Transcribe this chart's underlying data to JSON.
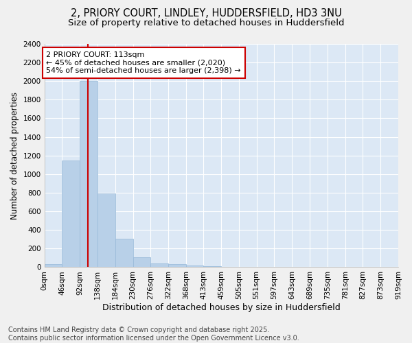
{
  "title1": "2, PRIORY COURT, LINDLEY, HUDDERSFIELD, HD3 3NU",
  "title2": "Size of property relative to detached houses in Huddersfield",
  "xlabel": "Distribution of detached houses by size in Huddersfield",
  "ylabel": "Number of detached properties",
  "bin_edges": [
    0,
    46,
    92,
    138,
    184,
    230,
    276,
    322,
    368,
    413,
    459,
    505,
    551,
    597,
    643,
    689,
    735,
    781,
    827,
    873,
    919
  ],
  "bar_heights": [
    30,
    1150,
    2000,
    790,
    305,
    105,
    40,
    30,
    15,
    10,
    5,
    0,
    0,
    0,
    0,
    0,
    0,
    0,
    0,
    0
  ],
  "bar_color": "#b8d0e8",
  "bar_edgecolor": "#96b8d8",
  "vline_x": 113,
  "vline_color": "#cc0000",
  "annotation_title": "2 PRIORY COURT: 113sqm",
  "annotation_line1": "← 45% of detached houses are smaller (2,020)",
  "annotation_line2": "54% of semi-detached houses are larger (2,398) →",
  "annotation_box_edgecolor": "#cc0000",
  "ylim": [
    0,
    2400
  ],
  "yticks": [
    0,
    200,
    400,
    600,
    800,
    1000,
    1200,
    1400,
    1600,
    1800,
    2000,
    2200,
    2400
  ],
  "fig_background": "#f0f0f0",
  "plot_bg_color": "#dce8f5",
  "grid_color": "#ffffff",
  "footer1": "Contains HM Land Registry data © Crown copyright and database right 2025.",
  "footer2": "Contains public sector information licensed under the Open Government Licence v3.0.",
  "title1_fontsize": 10.5,
  "title2_fontsize": 9.5,
  "xlabel_fontsize": 9,
  "ylabel_fontsize": 8.5,
  "tick_fontsize": 7.5,
  "annotation_fontsize": 8,
  "footer_fontsize": 7
}
